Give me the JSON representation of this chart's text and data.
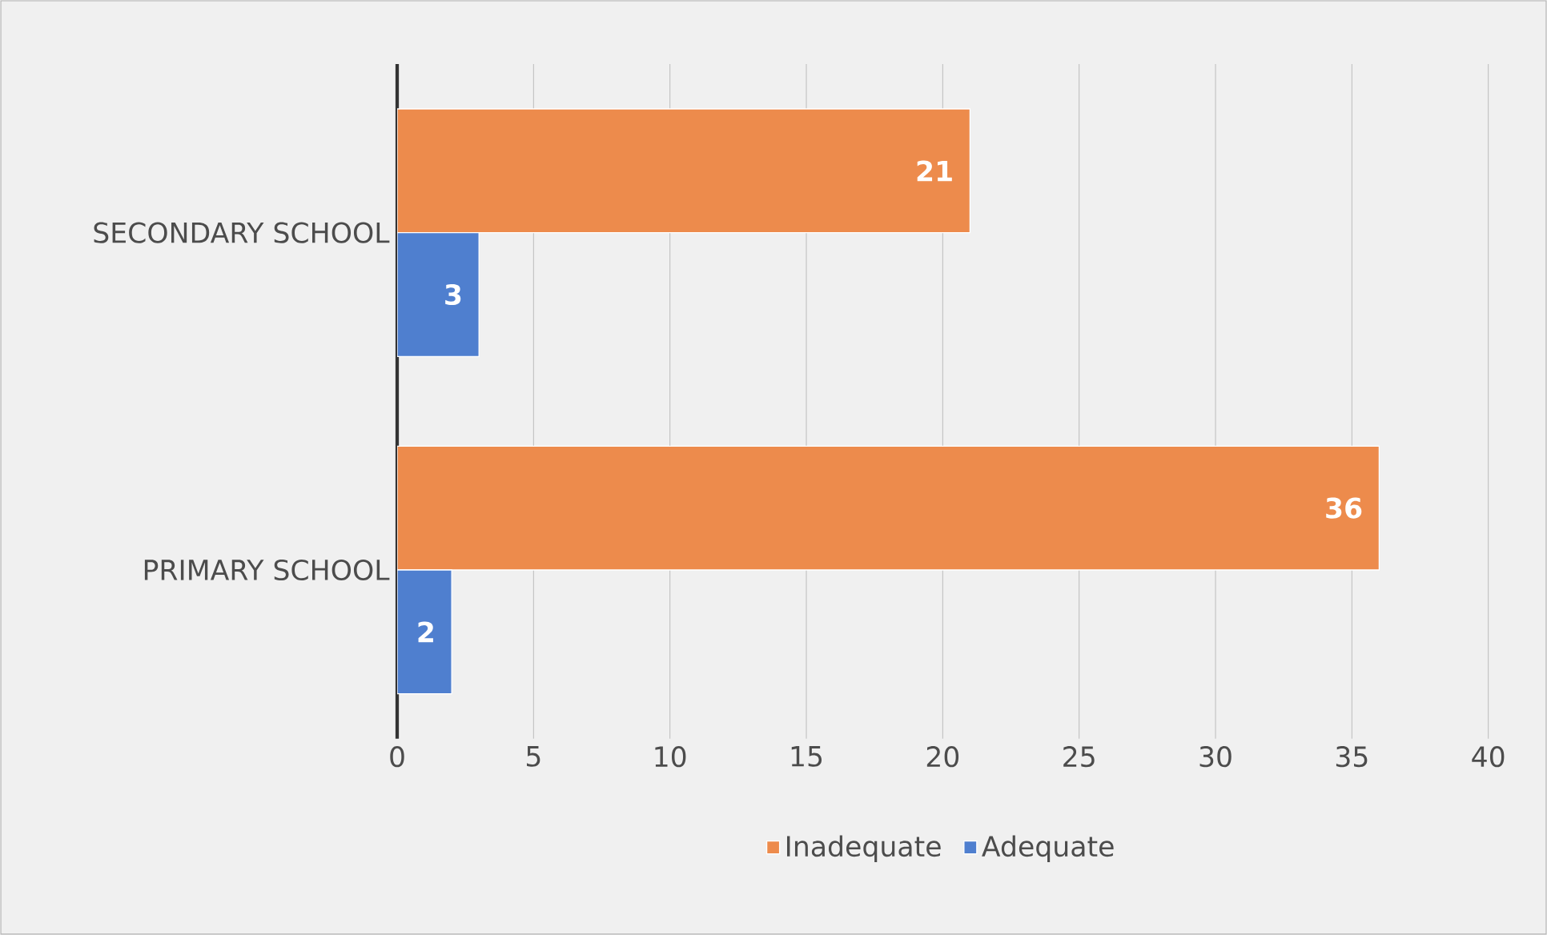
{
  "chart_data": {
    "type": "bar",
    "orientation": "horizontal",
    "categories": [
      "SECONDARY SCHOOL",
      "PRIMARY SCHOOL"
    ],
    "series": [
      {
        "name": "Inadequate",
        "color": "#ed8b4c",
        "values": [
          21,
          36
        ]
      },
      {
        "name": "Adequate",
        "color": "#4f7fcf",
        "values": [
          3,
          2
        ]
      }
    ],
    "xlim": [
      0,
      40
    ],
    "xticks": [
      0,
      5,
      10,
      15,
      20,
      25,
      30,
      35,
      40
    ],
    "grid": "x",
    "legend": "bottom",
    "data_labels": true
  }
}
